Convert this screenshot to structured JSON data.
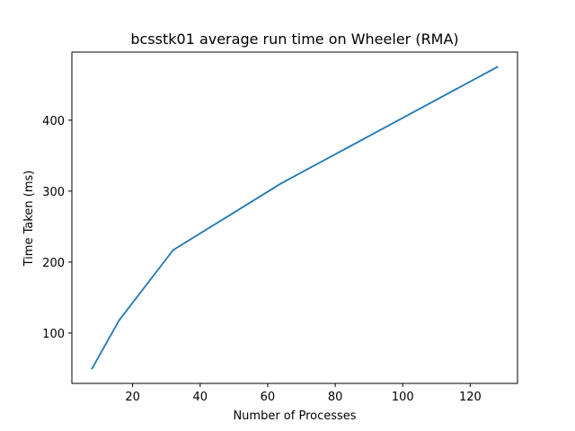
{
  "chart_data": {
    "type": "line",
    "title": "bcsstk01 average run time on Wheeler (RMA)",
    "xlabel": "Number of Processes",
    "ylabel": "Time Taken (ms)",
    "xlim": [
      2,
      134
    ],
    "ylim": [
      29,
      496
    ],
    "xticks": [
      20,
      40,
      60,
      80,
      100,
      120
    ],
    "yticks": [
      100,
      200,
      300,
      400
    ],
    "grid": false,
    "series": [
      {
        "color": "#1f77b4",
        "x": [
          8,
          16,
          32,
          64,
          128
        ],
        "y": [
          50,
          118,
          217,
          311,
          475
        ]
      }
    ]
  }
}
